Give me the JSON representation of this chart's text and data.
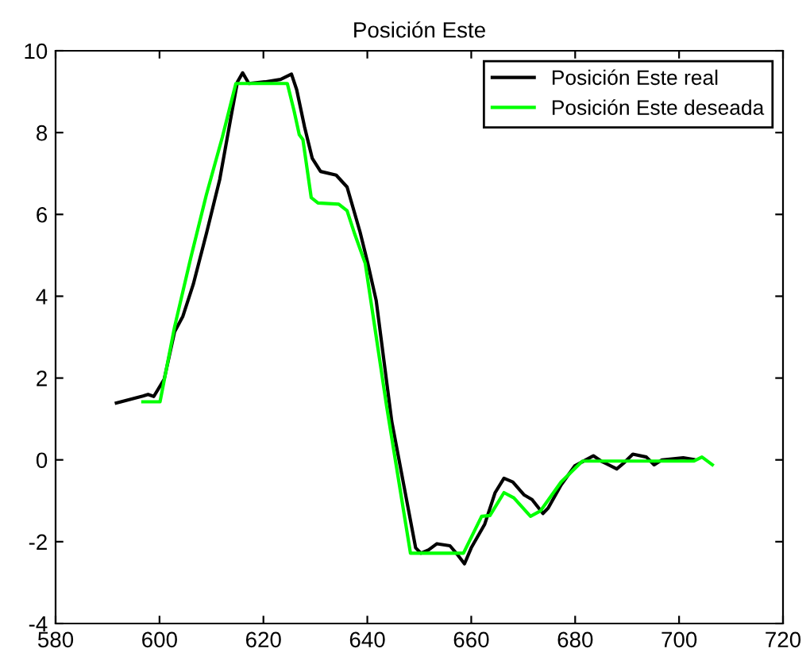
{
  "chart_data": {
    "type": "line",
    "title": "Posición Este",
    "xlim": [
      580,
      720
    ],
    "xticks": [
      580,
      600,
      620,
      640,
      660,
      680,
      700,
      720
    ],
    "ylim": [
      -4,
      10
    ],
    "yticks": [
      -4,
      -2,
      0,
      2,
      4,
      6,
      8,
      10
    ],
    "grid": false,
    "legend": "top right",
    "marker": "none",
    "line_style": "solid",
    "series": [
      {
        "name": "Posición Este real",
        "color": "#000000",
        "x": [
          591.7,
          596.8,
          597.8,
          598.9,
          600.9,
          602.9,
          604.5,
          606.5,
          609.1,
          611.6,
          613.6,
          615,
          616,
          617.2,
          620.3,
          623.3,
          625.4,
          626.4,
          627.9,
          629.4,
          631,
          634,
          636.1,
          638.6,
          640.1,
          641.7,
          644.7,
          649.3,
          650.3,
          651.8,
          653.4,
          655.9,
          657.5,
          658.7,
          660,
          662.6,
          664.6,
          666.3,
          668,
          670.2,
          671.7,
          673.8,
          674.8,
          677.3,
          679.9,
          683.5,
          685,
          688,
          689.5,
          691.1,
          693.7,
          695.2,
          696.7,
          700.8,
          702.8
        ],
        "values": [
          1.39,
          1.56,
          1.6,
          1.55,
          1.97,
          3.13,
          3.51,
          4.29,
          5.57,
          6.86,
          8.27,
          9.24,
          9.46,
          9.2,
          9.24,
          9.3,
          9.43,
          9.05,
          8.15,
          7.37,
          7.05,
          6.96,
          6.67,
          5.57,
          4.8,
          3.9,
          0.94,
          -2.15,
          -2.28,
          -2.2,
          -2.05,
          -2.1,
          -2.34,
          -2.54,
          -2.15,
          -1.57,
          -0.8,
          -0.45,
          -0.54,
          -0.86,
          -0.97,
          -1.31,
          -1.18,
          -0.61,
          -0.15,
          0.1,
          -0.03,
          -0.22,
          -0.06,
          0.14,
          0.07,
          -0.12,
          0,
          0.05,
          0.01
        ]
      },
      {
        "name": "Posición Este deseada",
        "color": "#00ff00",
        "x": [
          596.8,
          600.1,
          602.9,
          606,
          609,
          612.1,
          614.7,
          624.6,
          625.9,
          626.9,
          627.6,
          629.2,
          630.5,
          634.5,
          636.1,
          637.6,
          639.6,
          643.7,
          648.3,
          658.5,
          662,
          663.6,
          666.3,
          668.2,
          671.4,
          673.3,
          677.3,
          681.4,
          702.8,
          704.4,
          706.4
        ],
        "values": [
          1.42,
          1.42,
          3.25,
          4.93,
          6.47,
          7.89,
          9.2,
          9.2,
          8.53,
          7.95,
          7.83,
          6.41,
          6.28,
          6.25,
          6.09,
          5.51,
          4.8,
          1.32,
          -2.28,
          -2.28,
          -1.38,
          -1.36,
          -0.8,
          -0.93,
          -1.38,
          -1.25,
          -0.54,
          -0.03,
          -0.03,
          0.07,
          -0.12
        ]
      }
    ]
  }
}
